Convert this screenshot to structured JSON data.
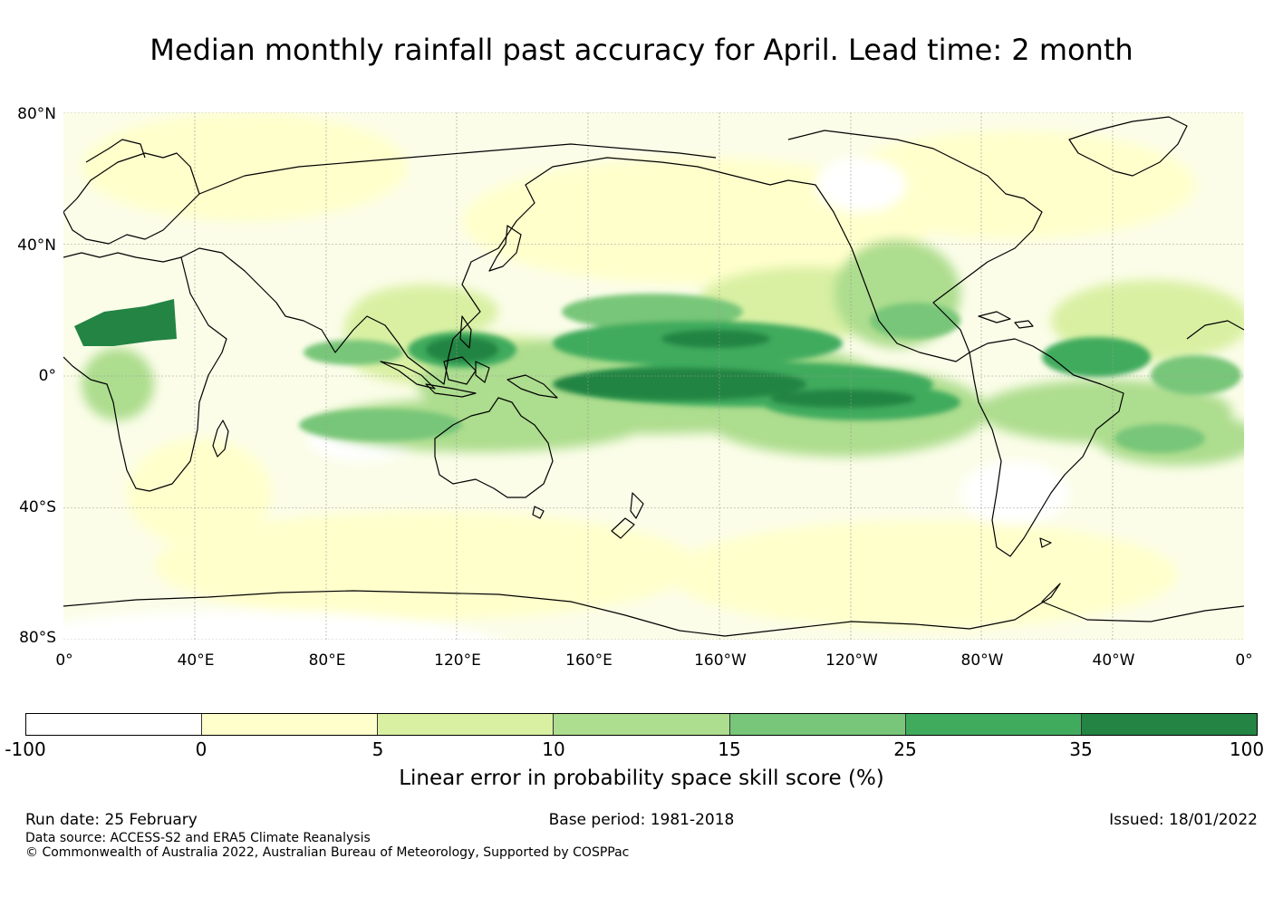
{
  "title": "Median monthly rainfall past accuracy for April. Lead time: 2 month",
  "lat_labels": [
    "80°N",
    "40°N",
    "0°",
    "40°S",
    "80°S"
  ],
  "lon_labels": [
    "0°",
    "40°E",
    "80°E",
    "120°E",
    "160°E",
    "160°W",
    "120°W",
    "80°W",
    "40°W",
    "0°"
  ],
  "colorbar": {
    "colors": [
      "#ffffff",
      "#ffffcc",
      "#d9f0a3",
      "#addd8e",
      "#78c679",
      "#41ab5d",
      "#238443"
    ],
    "ticks": [
      "-100",
      "0",
      "5",
      "10",
      "15",
      "25",
      "35",
      "100"
    ],
    "label": "Linear error in probability space skill score (%)"
  },
  "footer": {
    "run_date": "Run date: 25 February",
    "base_period": "Base period: 1981-2018",
    "issued": "Issued: 18/01/2022",
    "data_source": "Data source: ACCESS-S2 and ERA5 Climate Reanalysis",
    "copyright": "© Commonwealth of Australia 2022, Australian Bureau of Meteorology, Supported by COSPPac"
  }
}
